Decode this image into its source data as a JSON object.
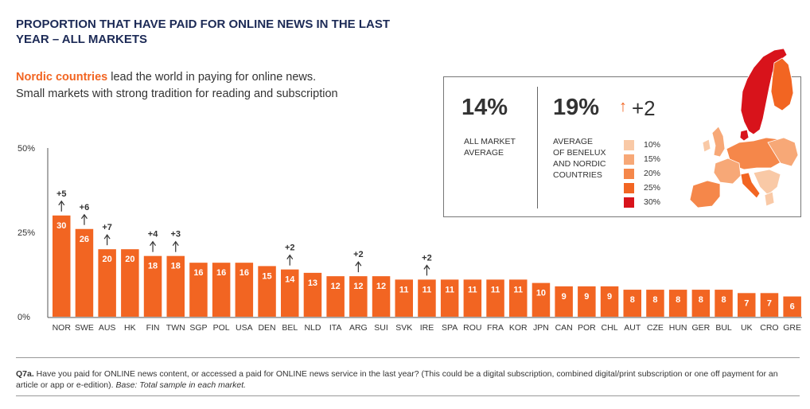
{
  "header": {
    "title": "PROPORTION THAT HAVE PAID FOR ONLINE NEWS IN THE LAST YEAR – ALL MARKETS",
    "subtitle_highlight": "Nordic countries",
    "subtitle_rest": " lead the world in paying for online news.",
    "subtitle_line2": "Small markets with strong tradition for reading and subscription"
  },
  "inset": {
    "all_market_value": "14%",
    "all_market_label_1": "ALL MARKET",
    "all_market_label_2": "AVERAGE",
    "benelux_value": "19%",
    "benelux_change": "+2",
    "benelux_label_1": "AVERAGE",
    "benelux_label_2": "OF BENELUX",
    "benelux_label_3": "AND NORDIC",
    "benelux_label_4": "COUNTRIES",
    "legend": [
      {
        "label": "10%",
        "color": "#f9c9a6"
      },
      {
        "label": "15%",
        "color": "#f7a877"
      },
      {
        "label": "20%",
        "color": "#f5874a"
      },
      {
        "label": "25%",
        "color": "#f26522"
      },
      {
        "label": "30%",
        "color": "#d8131b"
      }
    ]
  },
  "chart_data": {
    "type": "bar",
    "title": "PROPORTION THAT HAVE PAID FOR ONLINE NEWS IN THE LAST YEAR – ALL MARKETS",
    "xlabel": "",
    "ylabel": "",
    "ylim": [
      0,
      50
    ],
    "yticks": [
      0,
      25,
      50
    ],
    "ytick_labels": [
      "0%",
      "25%",
      "50%"
    ],
    "bar_color": "#f26522",
    "categories": [
      "NOR",
      "SWE",
      "AUS",
      "HK",
      "FIN",
      "TWN",
      "SGP",
      "POL",
      "USA",
      "DEN",
      "BEL",
      "NLD",
      "ITA",
      "ARG",
      "SUI",
      "SVK",
      "IRE",
      "SPA",
      "ROU",
      "FRA",
      "KOR",
      "JPN",
      "CAN",
      "POR",
      "CHL",
      "AUT",
      "CZE",
      "HUN",
      "GER",
      "BUL",
      "UK",
      "CRO",
      "GRE"
    ],
    "values": [
      30,
      26,
      20,
      20,
      18,
      18,
      16,
      16,
      16,
      15,
      14,
      13,
      12,
      12,
      12,
      11,
      11,
      11,
      11,
      11,
      11,
      10,
      9,
      9,
      9,
      8,
      8,
      8,
      8,
      8,
      7,
      7,
      6
    ],
    "value_labels": [
      "30",
      "26",
      "20",
      "20",
      "18",
      "18",
      "16",
      "16",
      "16",
      "15",
      "14",
      "13",
      "12",
      "12",
      "12",
      "11",
      "11",
      "11",
      "11",
      "11",
      "11",
      "10",
      "9",
      "9",
      "9",
      "8",
      "8",
      "8",
      "8",
      "8",
      "7",
      "7",
      "6"
    ],
    "changes": [
      {
        "category": "NOR",
        "label": "+5"
      },
      {
        "category": "SWE",
        "label": "+6"
      },
      {
        "category": "AUS",
        "label": "+7"
      },
      {
        "category": "FIN",
        "label": "+4"
      },
      {
        "category": "TWN",
        "label": "+3"
      },
      {
        "category": "BEL",
        "label": "+2"
      },
      {
        "category": "ARG",
        "label": "+2"
      },
      {
        "category": "IRE",
        "label": "+2"
      }
    ]
  },
  "footnote": {
    "q_label": "Q7a.",
    "question": " Have you paid for ONLINE news content, or accessed a paid for ONLINE news service in the last year? (This could be a digital subscription, combined digital/print subscription or one off payment for an article or app or e-edition). ",
    "base": "Base: Total sample in each market."
  },
  "map": {
    "colors": {
      "nordic": "#d8131b",
      "finland": "#f26522",
      "high": "#f5874a",
      "mid": "#f7a877",
      "low": "#f9c9a6"
    }
  }
}
